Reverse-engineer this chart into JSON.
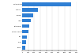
{
  "categories": [
    "United States",
    "Germany",
    "Belgium",
    "Japan",
    "Netherlands",
    "United Kingdom",
    "Italy",
    "China",
    "Russia"
  ],
  "values": [
    8148,
    2661,
    1822,
    1464,
    1183,
    1073,
    735,
    631,
    543
  ],
  "bar_color": "#2F7FD4",
  "background_color": "#ffffff",
  "xlim": [
    0,
    9000
  ],
  "bar_height": 0.65
}
